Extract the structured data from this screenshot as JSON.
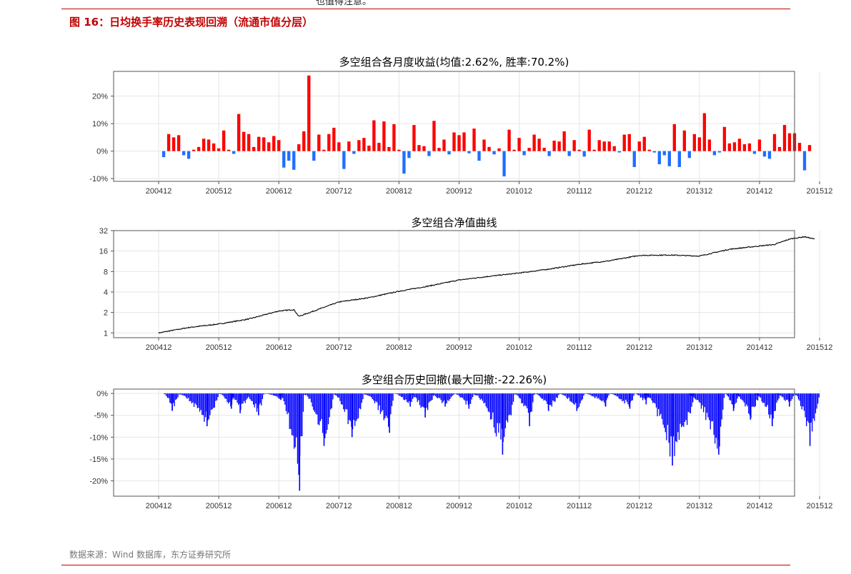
{
  "header_fragment": "也值得注意。",
  "figure_title": "图 16：日均换手率历史表现回溯（流通市值分层）",
  "source": "数据来源：Wind 数据库，东方证券研究所",
  "colors": {
    "positive": "#ff0000",
    "negative": "#1f6fff",
    "line": "#000000",
    "drawdown": "#0000ff",
    "accent": "#c00000"
  },
  "chart_data": [
    {
      "type": "bar",
      "title": "多空组合各月度收益(均值:2.62%, 胜率:70.2%)",
      "x_ticks": [
        "200412",
        "200512",
        "200612",
        "200712",
        "200812",
        "200912",
        "201012",
        "201112",
        "201212",
        "201312",
        "201412",
        "201512"
      ],
      "y_ticks": [
        "-10%",
        "0%",
        "10%",
        "20%"
      ],
      "ylim": [
        -11,
        29
      ],
      "unit": "%",
      "months_start": "2005-01",
      "values": [
        -2.2,
        6.2,
        5.0,
        5.8,
        -1.5,
        -2.8,
        0.5,
        1.5,
        4.5,
        4.2,
        2.8,
        1.0,
        7.5,
        0.5,
        -1.0,
        13.5,
        7.0,
        6.2,
        1.5,
        5.2,
        5.0,
        3.2,
        5.5,
        4.0,
        -6.0,
        -3.5,
        -6.8,
        2.5,
        7.2,
        27.5,
        -3.5,
        6.0,
        0.5,
        6.2,
        8.5,
        3.2,
        -6.5,
        3.5,
        -1.0,
        4.0,
        4.8,
        2.0,
        11.2,
        3.0,
        10.8,
        1.5,
        9.8,
        0.5,
        -8.2,
        -2.5,
        9.5,
        2.2,
        1.8,
        -1.8,
        11.0,
        1.2,
        4.2,
        -1.2,
        6.8,
        5.8,
        6.8,
        -0.8,
        8.2,
        -3.5,
        4.2,
        1.5,
        -1.2,
        1.0,
        -9.2,
        7.8,
        0.5,
        4.8,
        -1.5,
        1.2,
        6.0,
        4.5,
        1.2,
        -1.8,
        3.8,
        3.5,
        7.2,
        -1.8,
        4.0,
        0.5,
        -2.0,
        7.8,
        0.5,
        4.0,
        3.5,
        3.5,
        1.8,
        -0.5,
        6.0,
        6.2,
        -5.8,
        3.5,
        5.2,
        0.5,
        -0.5,
        -4.8,
        -1.5,
        -5.5,
        9.8,
        -5.8,
        7.5,
        -2.5,
        6.2,
        5.0,
        13.8,
        4.2,
        -1.5,
        -0.5,
        8.8,
        2.8,
        3.2,
        4.5,
        2.5,
        2.8,
        -1.0,
        4.2,
        -2.0,
        -2.8,
        6.2,
        1.5,
        9.5,
        6.5,
        6.5,
        3.0,
        -7.0,
        2.2
      ]
    },
    {
      "type": "line",
      "title": "多空组合净值曲线",
      "x_ticks": [
        "200412",
        "200512",
        "200612",
        "200712",
        "200812",
        "200912",
        "201012",
        "201112",
        "201212",
        "201312",
        "201412",
        "201512"
      ],
      "y_ticks": [
        "1",
        "2",
        "4",
        "8",
        "16",
        "32"
      ],
      "scale": "log2",
      "ylim": [
        0.85,
        32
      ],
      "x": [
        "2004-12",
        "2005-06",
        "2005-12",
        "2006-06",
        "2006-12",
        "2007-03",
        "2007-04",
        "2007-12",
        "2008-06",
        "2008-12",
        "2009-06",
        "2009-12",
        "2010-06",
        "2010-12",
        "2011-06",
        "2011-12",
        "2012-06",
        "2012-12",
        "2013-06",
        "2013-12",
        "2014-06",
        "2014-12",
        "2015-03",
        "2015-06",
        "2015-09",
        "2015-11"
      ],
      "y": [
        1.0,
        1.2,
        1.35,
        1.6,
        2.1,
        2.2,
        1.75,
        2.85,
        3.3,
        4.1,
        4.9,
        6.0,
        6.8,
        7.6,
        8.7,
        10.2,
        11.5,
        13.8,
        14.0,
        13.5,
        17.0,
        19.0,
        20.0,
        24.0,
        26.0,
        24.0
      ]
    },
    {
      "type": "area",
      "title": "多空组合历史回撤(最大回撤:-22.26%)",
      "x_ticks": [
        "200412",
        "200512",
        "200612",
        "200712",
        "200812",
        "200912",
        "201012",
        "201112",
        "201212",
        "201312",
        "201412",
        "201512"
      ],
      "y_ticks": [
        "-20%",
        "-15%",
        "-10%",
        "-5%",
        "0%"
      ],
      "ylim": [
        -23.5,
        1
      ],
      "unit": "%",
      "max_drawdown": -22.26,
      "episodes": [
        {
          "start": "2005-01",
          "end": "2005-03",
          "min": -4.0
        },
        {
          "start": "2005-04",
          "end": "2005-11",
          "min": -7.5
        },
        {
          "start": "2005-12",
          "end": "2006-02",
          "min": -3.5
        },
        {
          "start": "2006-02",
          "end": "2006-05",
          "min": -4.5
        },
        {
          "start": "2006-05",
          "end": "2006-08",
          "min": -5.0
        },
        {
          "start": "2006-09",
          "end": "2006-12",
          "min": -1.5
        },
        {
          "start": "2006-12",
          "end": "2007-04",
          "min": -22.26
        },
        {
          "start": "2007-05",
          "end": "2007-10",
          "min": -12.0
        },
        {
          "start": "2007-11",
          "end": "2008-04",
          "min": -10.0
        },
        {
          "start": "2008-05",
          "end": "2008-10",
          "min": -9.0
        },
        {
          "start": "2008-11",
          "end": "2009-02",
          "min": -3.0
        },
        {
          "start": "2009-02",
          "end": "2009-06",
          "min": -5.5
        },
        {
          "start": "2009-06",
          "end": "2009-10",
          "min": -3.0
        },
        {
          "start": "2009-11",
          "end": "2010-02",
          "min": -3.5
        },
        {
          "start": "2010-03",
          "end": "2010-10",
          "min": -14.0
        },
        {
          "start": "2010-11",
          "end": "2011-02",
          "min": -7.5
        },
        {
          "start": "2011-03",
          "end": "2011-07",
          "min": -4.0
        },
        {
          "start": "2011-08",
          "end": "2011-12",
          "min": -4.0
        },
        {
          "start": "2012-01",
          "end": "2012-05",
          "min": -3.0
        },
        {
          "start": "2012-06",
          "end": "2012-10",
          "min": -3.5
        },
        {
          "start": "2012-11",
          "end": "2013-01",
          "min": -2.5
        },
        {
          "start": "2013-01",
          "end": "2013-10",
          "min": -16.5
        },
        {
          "start": "2013-10",
          "end": "2014-04",
          "min": -14.0
        },
        {
          "start": "2014-05",
          "end": "2014-07",
          "min": -4.0
        },
        {
          "start": "2014-07",
          "end": "2014-11",
          "min": -6.0
        },
        {
          "start": "2014-11",
          "end": "2015-03",
          "min": -7.5
        },
        {
          "start": "2015-03",
          "end": "2015-06",
          "min": -3.0
        },
        {
          "start": "2015-07",
          "end": "2015-11",
          "min": -12.0
        }
      ]
    }
  ]
}
